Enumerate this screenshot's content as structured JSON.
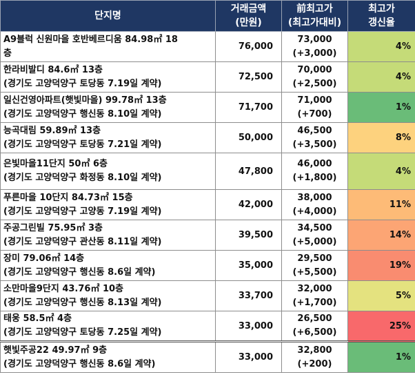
{
  "header": {
    "name": "단지명",
    "price_line1": "거래금액",
    "price_line2": "(만원)",
    "prev_line1": "前최고가",
    "prev_line2": "(최고가대비)",
    "rate_line1": "최고가",
    "rate_line2": "갱신율"
  },
  "rows": [
    {
      "name1": "A9블럭 신원마을 호반베르디움 84.98㎡ 18",
      "name2": "층",
      "price": "76,000",
      "prev": "73,000",
      "diff": "(+3,000)",
      "rate": "4%",
      "color": "#c5db78"
    },
    {
      "name1": "한라비발디 84.6㎡ 13층",
      "name2": "(경기도 고양덕양구 토당동 7.19일 계약)",
      "price": "72,500",
      "prev": "70,000",
      "diff": "(+2,500)",
      "rate": "4%",
      "color": "#c5db78"
    },
    {
      "name1": "일신건영아파트(햇빛마을) 99.78㎡ 13층",
      "name2": "(경기도 고양덕양구 행신동 8.10일 계약)",
      "price": "71,700",
      "prev": "71,000",
      "diff": "(+700)",
      "rate": "1%",
      "color": "#6abc78"
    },
    {
      "name1": "능곡대림 59.89㎡ 13층",
      "name2": "(경기도 고양덕양구 토당동 7.21일 계약)",
      "price": "50,000",
      "prev": "46,500",
      "diff": "(+3,500)",
      "rate": "8%",
      "color": "#fdd27e"
    },
    {
      "name1": "은빛마을11단지 50㎡ 6층",
      "name2": "(경기도 고양덕양구 화정동 8.10일 계약)",
      "price": "47,800",
      "prev": "46,000",
      "diff": "(+1,800)",
      "rate": "4%",
      "color": "#c5db78"
    },
    {
      "name1": "푸른마을 10단지 84.73㎡ 15층",
      "name2": "(경기도 고양덕양구 고양동 7.19일 계약)",
      "price": "42,000",
      "prev": "38,000",
      "diff": "(+4,000)",
      "rate": "11%",
      "color": "#fdbb77"
    },
    {
      "name1": "주공그린빌 75.95㎡ 3층",
      "name2": "(경기도 고양덕양구 관산동 8.11일 계약)",
      "price": "39,500",
      "prev": "34,500",
      "diff": "(+5,000)",
      "rate": "14%",
      "color": "#fca574"
    },
    {
      "name1": "장미 79.06㎡ 14층",
      "name2": "(경기도 고양덕양구 행신동 8.6일 계약)",
      "price": "35,000",
      "prev": "29,500",
      "diff": "(+5,500)",
      "rate": "19%",
      "color": "#f98c70"
    },
    {
      "name1": "소만마을9단지 43.76㎡ 10층",
      "name2": "(경기도 고양덕양구 행신동 8.13일 계약)",
      "price": "33,700",
      "prev": "32,000",
      "diff": "(+1,700)",
      "rate": "5%",
      "color": "#e4e27f"
    },
    {
      "name1": "태웅 58.5㎡ 4층",
      "name2": "(경기도 고양덕양구 토당동 7.25일 계약)",
      "price": "33,000",
      "prev": "26,500",
      "diff": "(+6,500)",
      "rate": "25%",
      "color": "#f8696b"
    },
    {
      "name1": "햇빛주공22 49.97㎡ 9층",
      "name2": "(경기도 고양덕양구 행신동 8.6일 계약)",
      "price": "33,000",
      "prev": "32,800",
      "diff": "(+200)",
      "rate": "1%",
      "color": "#6abc78"
    }
  ]
}
